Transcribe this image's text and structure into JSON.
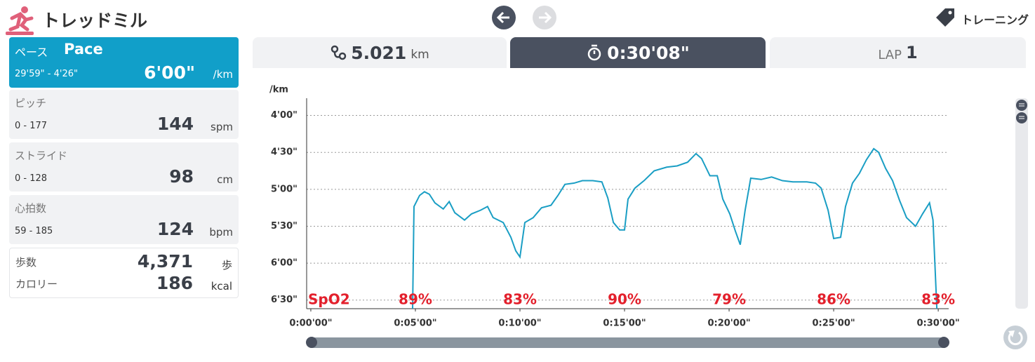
{
  "header": {
    "title": "トレッドミル",
    "training": "トレーニング"
  },
  "metrics": {
    "pace": {
      "label": "ペース",
      "name": "Pace",
      "range": "29'59\" - 4'26\"",
      "value": "6'00\"",
      "unit": "/km"
    },
    "pitch": {
      "label": "ピッチ",
      "range": "0 - 177",
      "value": "144",
      "unit": "spm"
    },
    "stride": {
      "label": "ストライド",
      "range": "0 - 128",
      "value": "98",
      "unit": "cm"
    },
    "heart_rate": {
      "label": "心拍数",
      "range": "59 - 185",
      "value": "124",
      "unit": "bpm"
    },
    "steps": {
      "label": "歩数",
      "value": "4,371",
      "unit": "歩"
    },
    "calories": {
      "label": "カロリー",
      "value": "186",
      "unit": "kcal"
    }
  },
  "tabs": {
    "distance": "5.021",
    "distance_unit": "km",
    "time": "0:30'08\"",
    "lap_label": "LAP",
    "lap": "1"
  },
  "chart_data": {
    "type": "line",
    "y_label": "/km",
    "color": "#1a9ec4",
    "invert_y": true,
    "grid": true,
    "x": [
      292,
      296,
      312,
      326,
      340,
      356,
      380,
      397,
      413,
      441,
      461,
      487,
      507,
      523,
      552,
      574,
      588,
      600,
      614,
      638,
      662,
      689,
      709,
      729,
      755,
      779,
      809,
      835,
      852,
      868,
      886,
      900,
      910,
      930,
      956,
      985,
      1021,
      1051,
      1081,
      1105,
      1121,
      1145,
      1166,
      1182,
      1202,
      1218,
      1232,
      1246,
      1262,
      1292,
      1322,
      1353,
      1383,
      1423,
      1448,
      1464,
      1484,
      1500,
      1520,
      1534,
      1554,
      1574,
      1594,
      1615,
      1629,
      1649,
      1669,
      1689,
      1709,
      1735,
      1755,
      1775,
      1785,
      1796
    ],
    "values": [
      397,
      314,
      305,
      302,
      304,
      311,
      316,
      310,
      319,
      325,
      320,
      317,
      314,
      323,
      327,
      339,
      350,
      355,
      327,
      323,
      315,
      313,
      305,
      296,
      295,
      293,
      293,
      294,
      307,
      327,
      333,
      333,
      308,
      299,
      293,
      285,
      282,
      281,
      278,
      271,
      275,
      289,
      289,
      308,
      320,
      334,
      345,
      317,
      291,
      292,
      290,
      293,
      294,
      294,
      295,
      299,
      317,
      340,
      339,
      314,
      295,
      287,
      276,
      267,
      270,
      283,
      293,
      309,
      323,
      330,
      320,
      311,
      325,
      397
    ],
    "xlim": [
      -12,
      1830
    ],
    "ylim": [
      397,
      226
    ],
    "xticks": [
      {
        "value": 0,
        "label": "0:00'00\""
      },
      {
        "value": 300,
        "label": "0:05'00\""
      },
      {
        "value": 600,
        "label": "0:10'00\""
      },
      {
        "value": 900,
        "label": "0:15'00\""
      },
      {
        "value": 1200,
        "label": "0:20'00\""
      },
      {
        "value": 1500,
        "label": "0:25'00\""
      },
      {
        "value": 1800,
        "label": "0:30'00\""
      }
    ],
    "yticks": [
      {
        "value": 240,
        "label": "4'00\""
      },
      {
        "value": 270,
        "label": "4'30\""
      },
      {
        "value": 300,
        "label": "5'00\""
      },
      {
        "value": 330,
        "label": "5'30\""
      },
      {
        "value": 360,
        "label": "6'00\""
      },
      {
        "value": 390,
        "label": "6'30\""
      }
    ],
    "spo2": {
      "label": "SpO2",
      "color": "#e3202c",
      "values": [
        89,
        83,
        90,
        79,
        86,
        83
      ],
      "value_labels": [
        "89%",
        "83%",
        "90%",
        "79%",
        "86%",
        "83%"
      ]
    }
  }
}
